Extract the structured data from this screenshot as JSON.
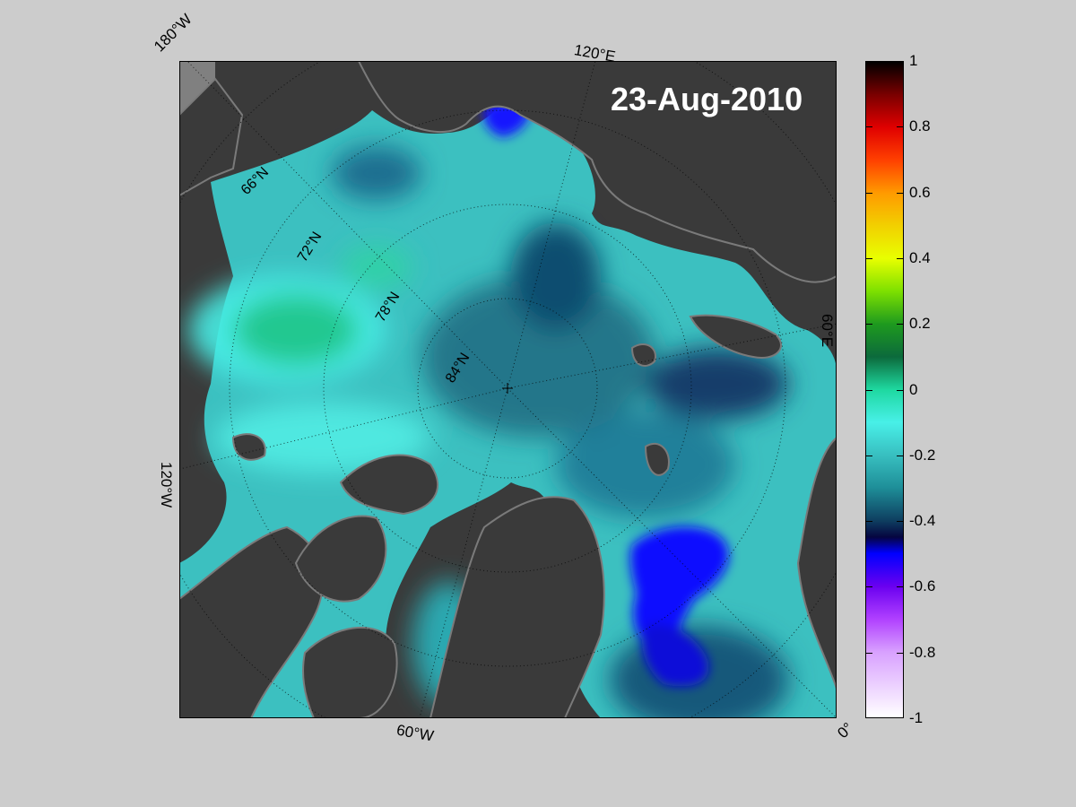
{
  "map": {
    "date": "23-Aug-2010",
    "longitude_labels": [
      "180°W",
      "120°E",
      "60°E",
      "0°",
      "60°W",
      "120°W"
    ],
    "latitude_labels": [
      "66°N",
      "72°N",
      "78°N",
      "84°N"
    ]
  },
  "colorbar": {
    "ticks": [
      "1",
      "0.8",
      "0.6",
      "0.4",
      "0.2",
      "0",
      "-0.2",
      "-0.4",
      "-0.6",
      "-0.8",
      "-1"
    ],
    "range": [
      -1,
      1
    ],
    "stops": [
      {
        "value": 1.0,
        "color": "#000000"
      },
      {
        "value": 0.9,
        "color": "#7a0000"
      },
      {
        "value": 0.8,
        "color": "#e00000"
      },
      {
        "value": 0.7,
        "color": "#ff4000"
      },
      {
        "value": 0.6,
        "color": "#ff9a00"
      },
      {
        "value": 0.5,
        "color": "#f2d000"
      },
      {
        "value": 0.4,
        "color": "#e8ff00"
      },
      {
        "value": 0.3,
        "color": "#7de000"
      },
      {
        "value": 0.2,
        "color": "#1e9a1e"
      },
      {
        "value": 0.1,
        "color": "#0c6a3c"
      },
      {
        "value": 0.0,
        "color": "#1ed8a0"
      },
      {
        "value": -0.1,
        "color": "#48f0e8"
      },
      {
        "value": -0.2,
        "color": "#38bfc0"
      },
      {
        "value": -0.3,
        "color": "#1e8e98"
      },
      {
        "value": -0.4,
        "color": "#0e3e60"
      },
      {
        "value": -0.45,
        "color": "#050540"
      },
      {
        "value": -0.5,
        "color": "#0000ff"
      },
      {
        "value": -0.6,
        "color": "#6a00f0"
      },
      {
        "value": -0.7,
        "color": "#b040ff"
      },
      {
        "value": -0.8,
        "color": "#d8a0ff"
      },
      {
        "value": -1.0,
        "color": "#ffffff"
      }
    ]
  },
  "colors": {
    "background": "#cccccc",
    "land": "#3a3a3a",
    "land_edge": "#808080",
    "ocean_base": "#3cc0c0"
  }
}
